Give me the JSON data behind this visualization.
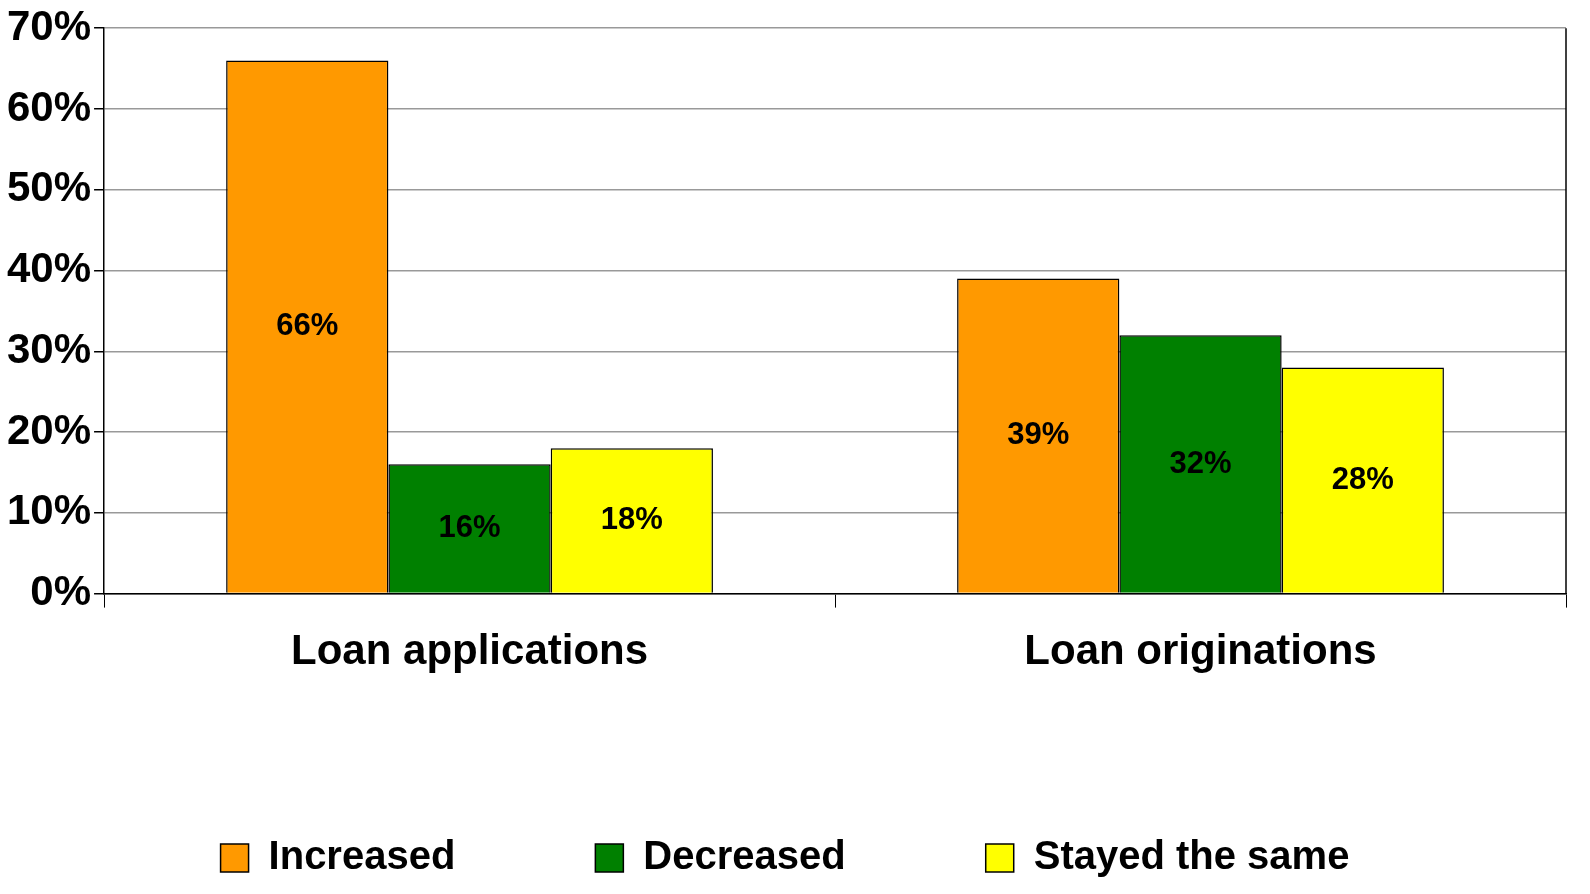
{
  "chart_data": {
    "type": "bar",
    "categories": [
      "Loan applications",
      "Loan originations"
    ],
    "series": [
      {
        "name": "Increased",
        "color": "#ff9900",
        "values": [
          66,
          39
        ],
        "value_labels": [
          "66%",
          "39%"
        ]
      },
      {
        "name": "Decreased",
        "color": "#008000",
        "values": [
          16,
          32
        ],
        "value_labels": [
          "16%",
          "32%"
        ]
      },
      {
        "name": "Stayed the same",
        "color": "#ffff00",
        "values": [
          18,
          28
        ],
        "value_labels": [
          "18%",
          "28%"
        ]
      }
    ],
    "ylim": [
      0,
      70
    ],
    "yticks": [
      {
        "value": 0,
        "label": "0%"
      },
      {
        "value": 10,
        "label": "10%"
      },
      {
        "value": 20,
        "label": "20%"
      },
      {
        "value": 30,
        "label": "30%"
      },
      {
        "value": 40,
        "label": "40%"
      },
      {
        "value": 50,
        "label": "50%"
      },
      {
        "value": 60,
        "label": "60%"
      },
      {
        "value": 70,
        "label": "70%"
      }
    ],
    "grid": "y",
    "legend": "bottom"
  }
}
